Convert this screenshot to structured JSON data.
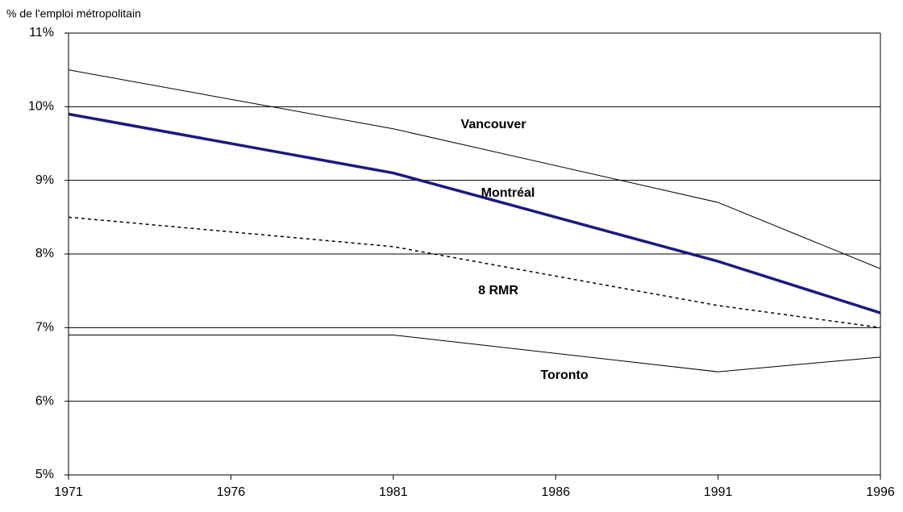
{
  "chart_data": {
    "type": "line",
    "y_label": "% de l'emploi métropolitain",
    "x": [
      1971,
      1981,
      1991,
      1996
    ],
    "series": [
      {
        "name": "Vancouver",
        "color": "#000000",
        "line_width": 1,
        "dashed": false,
        "values": [
          10.5,
          9.7,
          8.7,
          7.8
        ]
      },
      {
        "name": "Montréal",
        "color": "#1a1a80",
        "line_width": 3.5,
        "dashed": false,
        "values": [
          9.9,
          9.1,
          7.9,
          7.2
        ]
      },
      {
        "name": "8 RMR",
        "color": "#000000",
        "line_width": 1.5,
        "dashed": true,
        "values": [
          8.5,
          8.1,
          7.3,
          7.0
        ]
      },
      {
        "name": "Toronto",
        "color": "#000000",
        "line_width": 1,
        "dashed": false,
        "values": [
          6.9,
          6.9,
          6.4,
          6.6
        ]
      }
    ],
    "xlim": [
      1971,
      1996
    ],
    "xticks": [
      1971,
      1976,
      1981,
      1986,
      1991,
      1996
    ],
    "ylim": [
      5,
      11
    ],
    "yticks": [
      {
        "value": 5,
        "label": "5%"
      },
      {
        "value": 6,
        "label": "6%"
      },
      {
        "value": 7,
        "label": "7%"
      },
      {
        "value": 8,
        "label": "8%"
      },
      {
        "value": 9,
        "label": "9%"
      },
      {
        "value": 10,
        "label": "10%"
      },
      {
        "value": 11,
        "label": "11%"
      }
    ],
    "grid": true
  }
}
